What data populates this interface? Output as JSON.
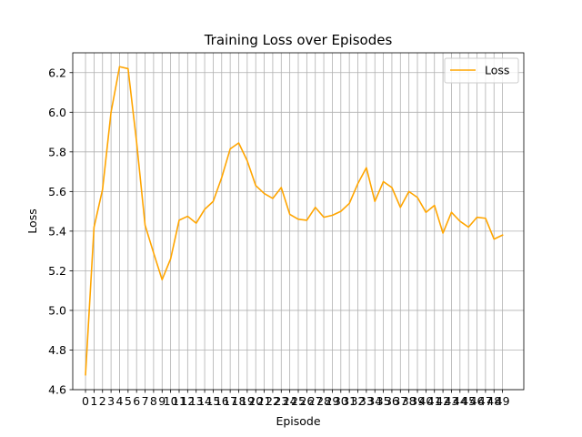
{
  "chart_data": {
    "type": "line",
    "title": "Training Loss over Episodes",
    "xlabel": "Episode",
    "ylabel": "Loss",
    "x": [
      0,
      1,
      2,
      3,
      4,
      5,
      6,
      7,
      8,
      9,
      10,
      11,
      12,
      13,
      14,
      15,
      16,
      17,
      18,
      19,
      20,
      21,
      22,
      23,
      24,
      25,
      26,
      27,
      28,
      29,
      30,
      31,
      32,
      33,
      34,
      35,
      36,
      37,
      38,
      39,
      40,
      41,
      42,
      43,
      44,
      45,
      46,
      47,
      48,
      49
    ],
    "x_tick_labels": [
      "0",
      "1",
      "2",
      "3",
      "4",
      "5",
      "6",
      "7",
      "8",
      "9",
      "10",
      "11",
      "12",
      "13",
      "14",
      "15",
      "16",
      "17",
      "18",
      "19",
      "20",
      "21",
      "22",
      "23",
      "24",
      "25",
      "26",
      "27",
      "28",
      "29",
      "30",
      "31",
      "32",
      "33",
      "34",
      "35",
      "36",
      "37",
      "38",
      "39",
      "40",
      "41",
      "42",
      "43",
      "44",
      "45",
      "46",
      "47",
      "48",
      "49"
    ],
    "xlim": [
      -1.5,
      51.5
    ],
    "ylim": [
      4.6,
      6.3
    ],
    "y_ticks": [
      4.6,
      4.8,
      5.0,
      5.2,
      5.4,
      5.6,
      5.8,
      6.0,
      6.2
    ],
    "y_tick_labels": [
      "4.6",
      "4.8",
      "5.0",
      "5.2",
      "5.4",
      "5.6",
      "5.8",
      "6.0",
      "6.2"
    ],
    "grid": true,
    "legend_position": "top-right",
    "series": [
      {
        "name": "Loss",
        "color": "#FFA500",
        "values": [
          4.675,
          5.42,
          5.61,
          6.0,
          6.23,
          6.22,
          5.85,
          5.43,
          5.29,
          5.155,
          5.26,
          5.455,
          5.475,
          5.44,
          5.51,
          5.55,
          5.67,
          5.815,
          5.845,
          5.755,
          5.63,
          5.59,
          5.565,
          5.62,
          5.485,
          5.46,
          5.455,
          5.52,
          5.47,
          5.48,
          5.5,
          5.54,
          5.64,
          5.72,
          5.55,
          5.65,
          5.62,
          5.52,
          5.6,
          5.57,
          5.495,
          5.53,
          5.39,
          5.495,
          5.45,
          5.42,
          5.47,
          5.465,
          5.36,
          5.38
        ]
      }
    ]
  }
}
